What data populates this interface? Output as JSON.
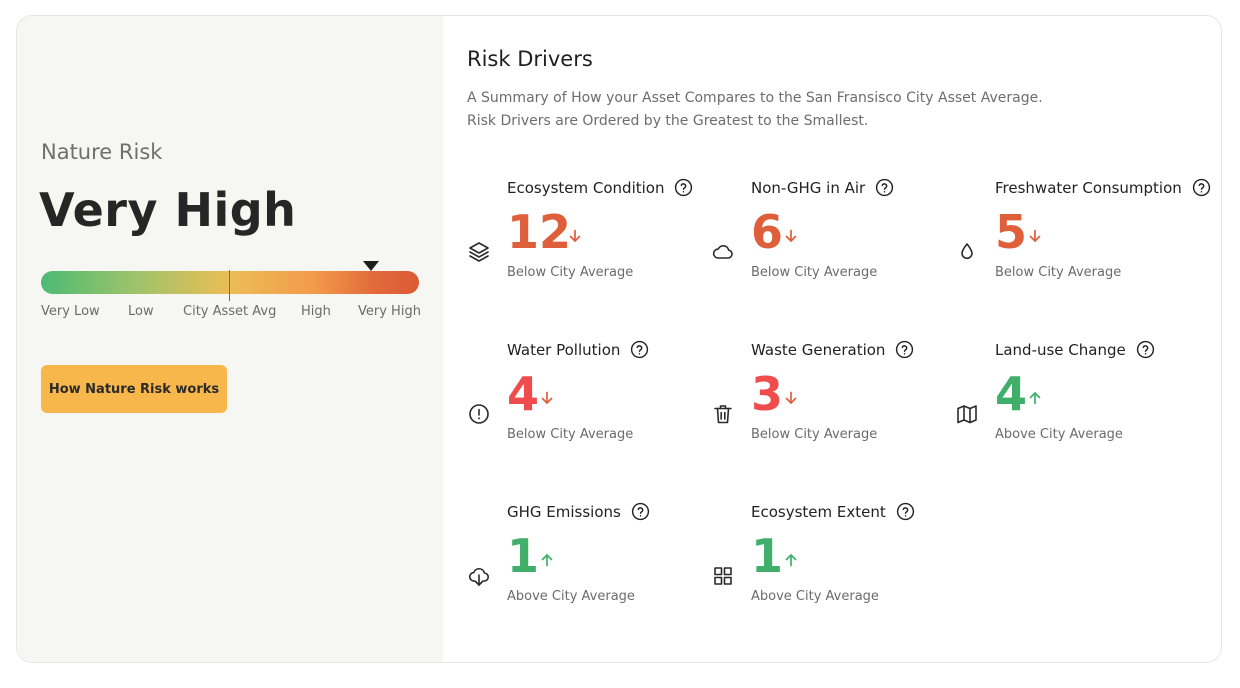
{
  "summary": {
    "label": "Nature Risk",
    "level": "Very High",
    "gauge_labels": [
      "Very Low",
      "Low",
      "City Asset Avg",
      "High",
      "Very High"
    ],
    "button_label": "How Nature Risk works"
  },
  "drivers_section": {
    "title": "Risk Drivers",
    "subtitle_line1": "A Summary of How your Asset Compares to the San Fransisco City Asset Average.",
    "subtitle_line2": "Risk Drivers are Ordered by the Greatest to the Smallest."
  },
  "colors": {
    "below": "#df5f3a",
    "below_strong": "#ef4d4d",
    "above": "#3faf6a",
    "button": "#f8b74b"
  },
  "drivers": [
    {
      "name": "Ecosystem Condition",
      "value": "12",
      "comparison": "Below City Average",
      "direction": "down",
      "icon": "layers-icon"
    },
    {
      "name": "Non-GHG in Air",
      "value": "6",
      "comparison": "Below City Average",
      "direction": "down",
      "icon": "cloud-icon"
    },
    {
      "name": "Freshwater Consumption",
      "value": "5",
      "comparison": "Below City Average",
      "direction": "down",
      "icon": "droplet-icon"
    },
    {
      "name": "Water Pollution",
      "value": "4",
      "comparison": "Below City Average",
      "direction": "down",
      "icon": "alert-circle-icon"
    },
    {
      "name": "Waste Generation",
      "value": "3",
      "comparison": "Below City Average",
      "direction": "down",
      "icon": "trash-icon"
    },
    {
      "name": "Land-use Change",
      "value": "4",
      "comparison": "Above City Average",
      "direction": "up",
      "icon": "map-icon"
    },
    {
      "name": "GHG Emissions",
      "value": "1",
      "comparison": "Above City Average",
      "direction": "up",
      "icon": "cloud-download-icon"
    },
    {
      "name": "Ecosystem Extent",
      "value": "1",
      "comparison": "Above City Average",
      "direction": "up",
      "icon": "grid-icon"
    }
  ]
}
